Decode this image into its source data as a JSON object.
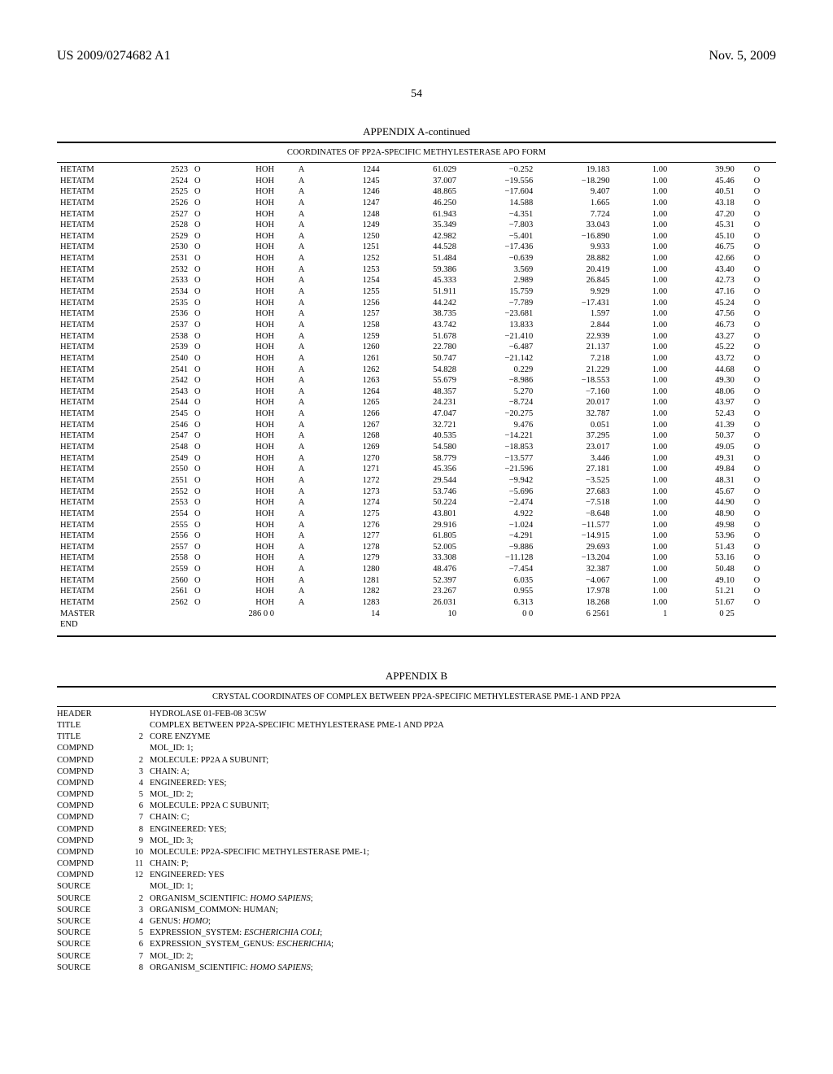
{
  "header": {
    "left": "US 2009/0274682 A1",
    "right": "Nov. 5, 2009"
  },
  "page_number": "54",
  "appendixA": {
    "title": "APPENDIX A-continued",
    "caption": "COORDINATES OF PP2A-SPECIFIC METHYLESTERASE APO FORM",
    "rows": [
      [
        "HETATM",
        "2523",
        "O",
        "HOH",
        "A",
        "1244",
        "61.029",
        "−0.252",
        "19.183",
        "1.00",
        "39.90",
        "O"
      ],
      [
        "HETATM",
        "2524",
        "O",
        "HOH",
        "A",
        "1245",
        "37.007",
        "−19.556",
        "−18.290",
        "1.00",
        "45.46",
        "O"
      ],
      [
        "HETATM",
        "2525",
        "O",
        "HOH",
        "A",
        "1246",
        "48.865",
        "−17.604",
        "9.407",
        "1.00",
        "40.51",
        "O"
      ],
      [
        "HETATM",
        "2526",
        "O",
        "HOH",
        "A",
        "1247",
        "46.250",
        "14.588",
        "1.665",
        "1.00",
        "43.18",
        "O"
      ],
      [
        "HETATM",
        "2527",
        "O",
        "HOH",
        "A",
        "1248",
        "61.943",
        "−4.351",
        "7.724",
        "1.00",
        "47.20",
        "O"
      ],
      [
        "HETATM",
        "2528",
        "O",
        "HOH",
        "A",
        "1249",
        "35.349",
        "−7.803",
        "33.043",
        "1.00",
        "45.31",
        "O"
      ],
      [
        "HETATM",
        "2529",
        "O",
        "HOH",
        "A",
        "1250",
        "42.982",
        "−5.401",
        "−16.890",
        "1.00",
        "45.10",
        "O"
      ],
      [
        "HETATM",
        "2530",
        "O",
        "HOH",
        "A",
        "1251",
        "44.528",
        "−17.436",
        "9.933",
        "1.00",
        "46.75",
        "O"
      ],
      [
        "HETATM",
        "2531",
        "O",
        "HOH",
        "A",
        "1252",
        "51.484",
        "−0.639",
        "28.882",
        "1.00",
        "42.66",
        "O"
      ],
      [
        "HETATM",
        "2532",
        "O",
        "HOH",
        "A",
        "1253",
        "59.386",
        "3.569",
        "20.419",
        "1.00",
        "43.40",
        "O"
      ],
      [
        "HETATM",
        "2533",
        "O",
        "HOH",
        "A",
        "1254",
        "45.333",
        "2.989",
        "26.845",
        "1.00",
        "42.73",
        "O"
      ],
      [
        "HETATM",
        "2534",
        "O",
        "HOH",
        "A",
        "1255",
        "51.911",
        "15.759",
        "9.929",
        "1.00",
        "47.16",
        "O"
      ],
      [
        "HETATM",
        "2535",
        "O",
        "HOH",
        "A",
        "1256",
        "44.242",
        "−7.789",
        "−17.431",
        "1.00",
        "45.24",
        "O"
      ],
      [
        "HETATM",
        "2536",
        "O",
        "HOH",
        "A",
        "1257",
        "38.735",
        "−23.681",
        "1.597",
        "1.00",
        "47.56",
        "O"
      ],
      [
        "HETATM",
        "2537",
        "O",
        "HOH",
        "A",
        "1258",
        "43.742",
        "13.833",
        "2.844",
        "1.00",
        "46.73",
        "O"
      ],
      [
        "HETATM",
        "2538",
        "O",
        "HOH",
        "A",
        "1259",
        "51.678",
        "−21.410",
        "22.939",
        "1.00",
        "43.27",
        "O"
      ],
      [
        "HETATM",
        "2539",
        "O",
        "HOH",
        "A",
        "1260",
        "22.780",
        "−6.487",
        "21.137",
        "1.00",
        "45.22",
        "O"
      ],
      [
        "HETATM",
        "2540",
        "O",
        "HOH",
        "A",
        "1261",
        "50.747",
        "−21.142",
        "7.218",
        "1.00",
        "43.72",
        "O"
      ],
      [
        "HETATM",
        "2541",
        "O",
        "HOH",
        "A",
        "1262",
        "54.828",
        "0.229",
        "21.229",
        "1.00",
        "44.68",
        "O"
      ],
      [
        "HETATM",
        "2542",
        "O",
        "HOH",
        "A",
        "1263",
        "55.679",
        "−8.986",
        "−18.553",
        "1.00",
        "49.30",
        "O"
      ],
      [
        "HETATM",
        "2543",
        "O",
        "HOH",
        "A",
        "1264",
        "48.357",
        "5.270",
        "−7.160",
        "1.00",
        "48.06",
        "O"
      ],
      [
        "HETATM",
        "2544",
        "O",
        "HOH",
        "A",
        "1265",
        "24.231",
        "−8.724",
        "20.017",
        "1.00",
        "43.97",
        "O"
      ],
      [
        "HETATM",
        "2545",
        "O",
        "HOH",
        "A",
        "1266",
        "47.047",
        "−20.275",
        "32.787",
        "1.00",
        "52.43",
        "O"
      ],
      [
        "HETATM",
        "2546",
        "O",
        "HOH",
        "A",
        "1267",
        "32.721",
        "9.476",
        "0.051",
        "1.00",
        "41.39",
        "O"
      ],
      [
        "HETATM",
        "2547",
        "O",
        "HOH",
        "A",
        "1268",
        "40.535",
        "−14.221",
        "37.295",
        "1.00",
        "50.37",
        "O"
      ],
      [
        "HETATM",
        "2548",
        "O",
        "HOH",
        "A",
        "1269",
        "54.580",
        "−18.853",
        "23.017",
        "1.00",
        "49.05",
        "O"
      ],
      [
        "HETATM",
        "2549",
        "O",
        "HOH",
        "A",
        "1270",
        "58.779",
        "−13.577",
        "3.446",
        "1.00",
        "49.31",
        "O"
      ],
      [
        "HETATM",
        "2550",
        "O",
        "HOH",
        "A",
        "1271",
        "45.356",
        "−21.596",
        "27.181",
        "1.00",
        "49.84",
        "O"
      ],
      [
        "HETATM",
        "2551",
        "O",
        "HOH",
        "A",
        "1272",
        "29.544",
        "−9.942",
        "−3.525",
        "1.00",
        "48.31",
        "O"
      ],
      [
        "HETATM",
        "2552",
        "O",
        "HOH",
        "A",
        "1273",
        "53.746",
        "−5.696",
        "27.683",
        "1.00",
        "45.67",
        "O"
      ],
      [
        "HETATM",
        "2553",
        "O",
        "HOH",
        "A",
        "1274",
        "50.224",
        "−2.474",
        "−7.518",
        "1.00",
        "44.90",
        "O"
      ],
      [
        "HETATM",
        "2554",
        "O",
        "HOH",
        "A",
        "1275",
        "43.801",
        "4.922",
        "−8.648",
        "1.00",
        "48.90",
        "O"
      ],
      [
        "HETATM",
        "2555",
        "O",
        "HOH",
        "A",
        "1276",
        "29.916",
        "−1.024",
        "−11.577",
        "1.00",
        "49.98",
        "O"
      ],
      [
        "HETATM",
        "2556",
        "O",
        "HOH",
        "A",
        "1277",
        "61.805",
        "−4.291",
        "−14.915",
        "1.00",
        "53.96",
        "O"
      ],
      [
        "HETATM",
        "2557",
        "O",
        "HOH",
        "A",
        "1278",
        "52.005",
        "−9.886",
        "29.693",
        "1.00",
        "51.43",
        "O"
      ],
      [
        "HETATM",
        "2558",
        "O",
        "HOH",
        "A",
        "1279",
        "33.308",
        "−11.128",
        "−13.204",
        "1.00",
        "53.16",
        "O"
      ],
      [
        "HETATM",
        "2559",
        "O",
        "HOH",
        "A",
        "1280",
        "48.476",
        "−7.454",
        "32.387",
        "1.00",
        "50.48",
        "O"
      ],
      [
        "HETATM",
        "2560",
        "O",
        "HOH",
        "A",
        "1281",
        "52.397",
        "6.035",
        "−4.067",
        "1.00",
        "49.10",
        "O"
      ],
      [
        "HETATM",
        "2561",
        "O",
        "HOH",
        "A",
        "1282",
        "23.267",
        "0.955",
        "17.978",
        "1.00",
        "51.21",
        "O"
      ],
      [
        "HETATM",
        "2562",
        "O",
        "HOH",
        "A",
        "1283",
        "26.031",
        "6.313",
        "18.268",
        "1.00",
        "51.67",
        "O"
      ],
      [
        "MASTER",
        "",
        "",
        "286 0          0",
        "",
        "14",
        "10",
        "0        0",
        "6 2561",
        "1",
        "0    25",
        ""
      ],
      [
        "END",
        "",
        "",
        "",
        "",
        "",
        "",
        "",
        "",
        "",
        "",
        ""
      ]
    ]
  },
  "appendixB": {
    "title": "APPENDIX B",
    "caption": "CRYSTAL COORDINATES OF COMPLEX BETWEEN PP2A-SPECIFIC METHYLESTERASE PME-1 AND PP2A",
    "lines": [
      {
        "k": "HEADER",
        "n": "",
        "v": "HYDROLASE                                           01-FEB-08        3C5W"
      },
      {
        "k": "TITLE",
        "n": "",
        "v": "COMPLEX BETWEEN PP2A-SPECIFIC METHYLESTERASE PME-1 AND PP2A"
      },
      {
        "k": "TITLE",
        "n": "2",
        "v": "CORE ENZYME"
      },
      {
        "k": "COMPND",
        "n": "",
        "v": "MOL_ID: 1;"
      },
      {
        "k": "COMPND",
        "n": "2",
        "v": "MOLECULE: PP2A A SUBUNIT;"
      },
      {
        "k": "COMPND",
        "n": "3",
        "v": "CHAIN: A;"
      },
      {
        "k": "COMPND",
        "n": "4",
        "v": "ENGINEERED: YES;"
      },
      {
        "k": "COMPND",
        "n": "5",
        "v": "MOL_ID: 2;"
      },
      {
        "k": "COMPND",
        "n": "6",
        "v": "MOLECULE: PP2A C SUBUNIT;"
      },
      {
        "k": "COMPND",
        "n": "7",
        "v": "CHAIN: C;"
      },
      {
        "k": "COMPND",
        "n": "8",
        "v": "ENGINEERED: YES;"
      },
      {
        "k": "COMPND",
        "n": "9",
        "v": "MOL_ID: 3;"
      },
      {
        "k": "COMPND",
        "n": "10",
        "v": "MOLECULE: PP2A-SPECIFIC METHYLESTERASE PME-1;"
      },
      {
        "k": "COMPND",
        "n": "11",
        "v": "CHAIN: P;"
      },
      {
        "k": "COMPND",
        "n": "12",
        "v": "ENGINEERED: YES"
      },
      {
        "k": "SOURCE",
        "n": "",
        "v": "MOL_ID: 1;"
      },
      {
        "k": "SOURCE",
        "n": "2",
        "v": "ORGANISM_SCIENTIFIC: <i>HOMO SAPIENS</i>;"
      },
      {
        "k": "SOURCE",
        "n": "3",
        "v": "ORGANISM_COMMON: HUMAN;"
      },
      {
        "k": "SOURCE",
        "n": "4",
        "v": "GENUS: <i>HOMO</i>;"
      },
      {
        "k": "SOURCE",
        "n": "5",
        "v": "EXPRESSION_SYSTEM: <i>ESCHERICHIA COLI</i>;"
      },
      {
        "k": "SOURCE",
        "n": "6",
        "v": "EXPRESSION_SYSTEM_GENUS: <i>ESCHERICHIA</i>;"
      },
      {
        "k": "SOURCE",
        "n": "7",
        "v": "MOL_ID: 2;"
      },
      {
        "k": "SOURCE",
        "n": "8",
        "v": "ORGANISM_SCIENTIFIC: <i>HOMO SAPIENS</i>;"
      }
    ]
  }
}
